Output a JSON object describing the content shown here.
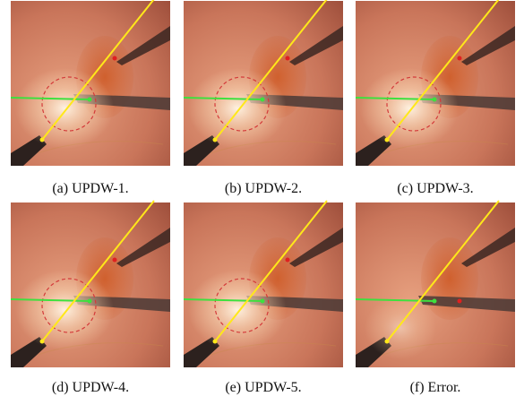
{
  "captions": [
    "(a) UPDW-1.",
    "(b) UPDW-2.",
    "(c) UPDW-3.",
    "(d) UPDW-4.",
    "(e) UPDW-5.",
    "(f) Error."
  ]
}
